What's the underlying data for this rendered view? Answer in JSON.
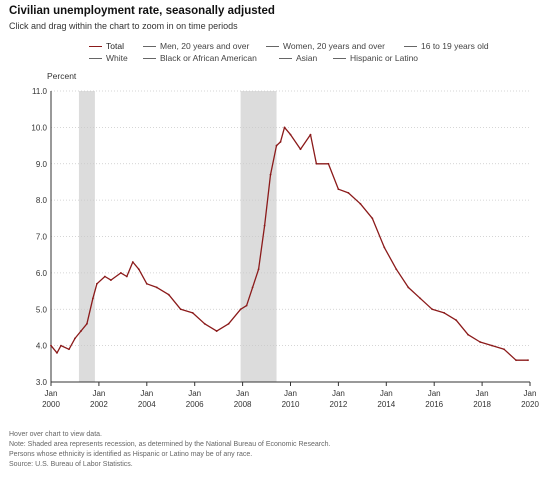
{
  "title": "Civilian unemployment rate, seasonally adjusted",
  "subtitle": "Click and drag within the chart to zoom in on time periods",
  "legend": [
    {
      "label": "Total",
      "active": true
    },
    {
      "label": "Men, 20 years and over",
      "active": false
    },
    {
      "label": "Women, 20 years and over",
      "active": false
    },
    {
      "label": "16 to 19 years old",
      "active": false
    },
    {
      "label": "White",
      "active": false
    },
    {
      "label": "Black or African American",
      "active": false
    },
    {
      "label": "Asian",
      "active": false
    },
    {
      "label": "Hispanic or Latino",
      "active": false
    }
  ],
  "notes": {
    "hover": "Hover over chart to view data.",
    "note": "Note: Shaded area represents recession, as determined by the National Bureau of Economic Research.",
    "ethnicity": "Persons whose ethnicity is identified as Hispanic or Latino may be of any race.",
    "source": "Source: U.S. Bureau of Labor Statistics."
  },
  "colors": {
    "series": "#8b1a1a",
    "recession": "#dcdcdc",
    "grid": "#c8c8c8"
  },
  "chart_data": {
    "type": "line",
    "ylabel": "Percent",
    "xlabel": "",
    "ylim": [
      3.0,
      11.0
    ],
    "xlim": [
      2000.0,
      2020.0
    ],
    "y_ticks": [
      "3.0",
      "4.0",
      "5.0",
      "6.0",
      "7.0",
      "8.0",
      "9.0",
      "10.0",
      "11.0"
    ],
    "x_ticks": [
      {
        "month": "Jan",
        "year": "2000"
      },
      {
        "month": "Jan",
        "year": "2002"
      },
      {
        "month": "Jan",
        "year": "2004"
      },
      {
        "month": "Jan",
        "year": "2006"
      },
      {
        "month": "Jan",
        "year": "2008"
      },
      {
        "month": "Jan",
        "year": "2010"
      },
      {
        "month": "Jan",
        "year": "2012"
      },
      {
        "month": "Jan",
        "year": "2014"
      },
      {
        "month": "Jan",
        "year": "2016"
      },
      {
        "month": "Jan",
        "year": "2018"
      },
      {
        "month": "Jan",
        "year": "2020"
      }
    ],
    "grid": true,
    "recessions": [
      {
        "start": "Mar 2001",
        "end": "Nov 2001"
      },
      {
        "start": "Dec 2007",
        "end": "Jun 2009"
      }
    ],
    "series": [
      {
        "name": "Total",
        "x": [
          "Jan 2000",
          "Apr 2000",
          "Jun 2000",
          "Oct 2000",
          "Jan 2001",
          "Apr 2001",
          "Jul 2001",
          "Oct 2001",
          "Dec 2001",
          "Apr 2002",
          "Jul 2002",
          "Dec 2002",
          "Mar 2003",
          "Jun 2003",
          "Sep 2003",
          "Jan 2004",
          "Jun 2004",
          "Dec 2004",
          "Jun 2005",
          "Dec 2005",
          "Jun 2006",
          "Dec 2006",
          "Jun 2007",
          "Dec 2007",
          "Mar 2008",
          "Jun 2008",
          "Sep 2008",
          "Dec 2008",
          "Mar 2009",
          "Jun 2009",
          "Aug 2009",
          "Oct 2009",
          "Jan 2010",
          "Jun 2010",
          "Nov 2010",
          "Feb 2011",
          "Aug 2011",
          "Jan 2012",
          "Jun 2012",
          "Dec 2012",
          "Jun 2013",
          "Dec 2013",
          "Jun 2014",
          "Dec 2014",
          "Jun 2015",
          "Dec 2015",
          "Jun 2016",
          "Dec 2016",
          "Jun 2017",
          "Dec 2017",
          "Jun 2018",
          "Dec 2018",
          "Jun 2019",
          "Dec 2019"
        ],
        "values": [
          4.0,
          3.8,
          4.0,
          3.9,
          4.2,
          4.4,
          4.6,
          5.3,
          5.7,
          5.9,
          5.8,
          6.0,
          5.9,
          6.3,
          6.1,
          5.7,
          5.6,
          5.4,
          5.0,
          4.9,
          4.6,
          4.4,
          4.6,
          5.0,
          5.1,
          5.6,
          6.1,
          7.3,
          8.7,
          9.5,
          9.6,
          10.0,
          9.8,
          9.4,
          9.8,
          9.0,
          9.0,
          8.3,
          8.2,
          7.9,
          7.5,
          6.7,
          6.1,
          5.6,
          5.3,
          5.0,
          4.9,
          4.7,
          4.3,
          4.1,
          4.0,
          3.9,
          3.6,
          3.6
        ]
      }
    ]
  }
}
